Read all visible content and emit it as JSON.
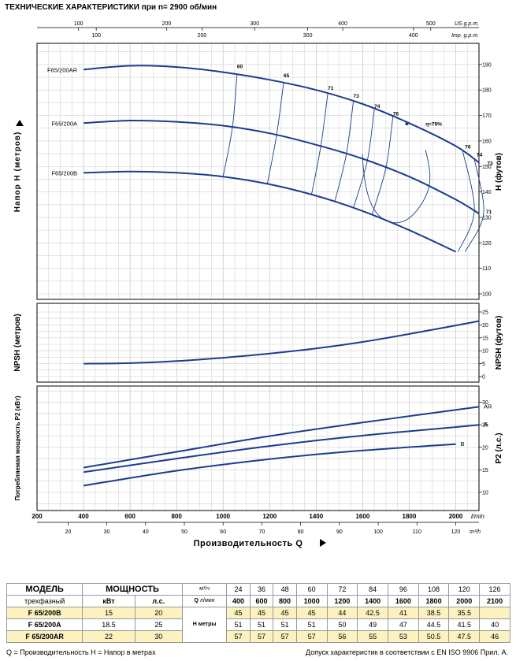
{
  "title": "ТЕХНИЧЕСКИЕ ХАРАКТЕРИСТИКИ при n= 2900 об/мин",
  "top_axes": {
    "us_label": "US g.p.m.",
    "imp_label": "Imp. g.p.m.",
    "us_ticks": [
      "100",
      "200",
      "300",
      "400",
      "500"
    ],
    "imp_ticks": [
      "100",
      "200",
      "300",
      "400"
    ]
  },
  "x_axis": {
    "lmin_label": "l/min",
    "m3h_label": "m³/h",
    "title": "Производительность Q",
    "lmin_ticks": [
      "200",
      "400",
      "600",
      "800",
      "1000",
      "1200",
      "1400",
      "1600",
      "1800",
      "2000"
    ],
    "m3h_ticks": [
      "20",
      "30",
      "40",
      "50",
      "60",
      "70",
      "80",
      "90",
      "100",
      "110",
      "120"
    ]
  },
  "head_panel": {
    "ylabel_left": "Напор H (метров)",
    "ylabel_right": "H (футов)",
    "feet_ticks": [
      "100",
      "110",
      "120",
      "130",
      "140",
      "150",
      "160",
      "170",
      "180",
      "190"
    ]
  },
  "npsh_panel": {
    "ylabel_left": "NPSH (метров)",
    "ylabel_right": "NPSH (футов)",
    "feet_ticks": [
      "0",
      "5",
      "10",
      "15",
      "20",
      "25"
    ]
  },
  "power_panel": {
    "ylabel_left": "Потребляемая мощность P2 (кВт)",
    "ylabel_right": "P2 (л.с.)",
    "hp_ticks": [
      "10",
      "15",
      "20",
      "25",
      "30"
    ]
  },
  "chart_data": {
    "type": "line",
    "x_unit": "l/min",
    "xlim": [
      200,
      2100
    ],
    "head_curves": [
      {
        "name": "F65/200AR",
        "x": [
          400,
          600,
          800,
          1000,
          1200,
          1400,
          1600,
          1800,
          2000,
          2100
        ],
        "y_ft": [
          188,
          189.5,
          189,
          187,
          184,
          180,
          174.5,
          167,
          158,
          151.5
        ]
      },
      {
        "name": "F65/200A",
        "x": [
          400,
          600,
          800,
          1000,
          1200,
          1400,
          1600,
          1800,
          2000,
          2100
        ],
        "y_ft": [
          167,
          168,
          167.5,
          166,
          163,
          158.5,
          153,
          146,
          137,
          131.5
        ]
      },
      {
        "name": "F65/200B",
        "x": [
          400,
          600,
          800,
          1000,
          1200,
          1400,
          1600,
          1800,
          2000
        ],
        "y_ft": [
          147.5,
          148,
          147.5,
          146,
          143,
          138.5,
          132.5,
          125,
          116.5
        ]
      }
    ],
    "efficiency_labels": [
      "60",
      "65",
      "71",
      "73",
      "74",
      "76",
      "η=79%",
      "76",
      "74",
      "73",
      "71"
    ],
    "npsh": {
      "x": [
        400,
        600,
        800,
        1000,
        1200,
        1400,
        1600,
        1800,
        2000,
        2100
      ],
      "y_ft": [
        5,
        5.2,
        6,
        7.3,
        8.9,
        10.9,
        13.4,
        16.5,
        19.8,
        21.5
      ]
    },
    "power": [
      {
        "name": "AR",
        "x": [
          400,
          800,
          1200,
          1600,
          2000,
          2100
        ],
        "y_hp": [
          15.5,
          19,
          22.5,
          25.5,
          28.3,
          29
        ]
      },
      {
        "name": "A",
        "x": [
          400,
          800,
          1200,
          1600,
          2000,
          2100
        ],
        "y_hp": [
          14.5,
          17.5,
          20.3,
          22.6,
          24.5,
          25
        ]
      },
      {
        "name": "B",
        "x": [
          400,
          800,
          1200,
          1600,
          2000
        ],
        "y_hp": [
          11.5,
          14.8,
          17.4,
          19.3,
          20.7
        ]
      }
    ]
  },
  "table": {
    "h_model": "МОДЕЛЬ",
    "h_power": "МОЩНОСТЬ",
    "h_phase": "трехфазный",
    "h_kw": "кВт",
    "h_hp": "л.с.",
    "q_unit1": "м³/ч",
    "q_label": "Q",
    "q_unit2": "л/мин",
    "h_label": "H метры",
    "m3h": [
      "24",
      "36",
      "48",
      "60",
      "72",
      "84",
      "96",
      "108",
      "120",
      "126"
    ],
    "lmin": [
      "400",
      "600",
      "800",
      "1000",
      "1200",
      "1400",
      "1600",
      "1800",
      "2000",
      "2100"
    ],
    "rows": [
      {
        "model": "F 65/200B",
        "kw": "15",
        "hp": "20",
        "h": [
          "45",
          "45",
          "45",
          "45",
          "44",
          "42.5",
          "41",
          "38.5",
          "35.5",
          ""
        ]
      },
      {
        "model": "F 65/200A",
        "kw": "18.5",
        "hp": "25",
        "h": [
          "51",
          "51",
          "51",
          "51",
          "50",
          "49",
          "47",
          "44.5",
          "41.5",
          "40"
        ]
      },
      {
        "model": "F 65/200AR",
        "kw": "22",
        "hp": "30",
        "h": [
          "57",
          "57",
          "57",
          "57",
          "56",
          "55",
          "53",
          "50.5",
          "47.5",
          "46"
        ]
      }
    ]
  },
  "footer": {
    "left": "Q = Производительность   H = Напор в метрах",
    "right": "Допуск характеристик в соответствии с EN ISO 9906 Прил.  A."
  }
}
